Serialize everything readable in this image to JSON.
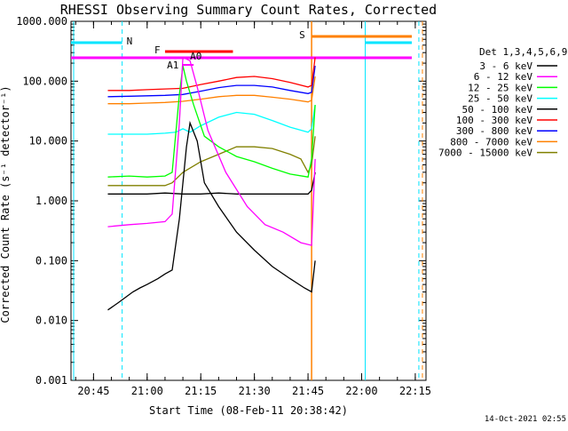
{
  "chart_data": {
    "type": "line",
    "title": "RHESSI Observing Summary Count Rates, Corrected",
    "xlabel": "Start Time (08-Feb-11 20:38:42)",
    "ylabel": "Corrected Count Rate (s⁻¹ detector⁻¹)",
    "x_start": "20:38:42",
    "x_range": [
      "20:38:42",
      "22:18:00"
    ],
    "x_ticks": [
      "20:45",
      "21:00",
      "21:15",
      "21:30",
      "21:45",
      "22:00",
      "22:15"
    ],
    "y_scale": "log",
    "ylim": [
      0.001,
      1000
    ],
    "y_ticks": [
      "0.001",
      "0.010",
      "0.100",
      "1.000",
      "10.000",
      "100.000",
      "1000.000"
    ],
    "legend_title": "Det 1,3,4,5,6,9",
    "legend_position": "right",
    "timestamp": "14-Oct-2021 02:55",
    "series": [
      {
        "name": "3 - 6 keV",
        "color": "#000000",
        "x": [
          "20:49",
          "20:52",
          "20:56",
          "20:58",
          "21:00",
          "21:03",
          "21:05",
          "21:07",
          "21:09",
          "21:11",
          "21:12",
          "21:14",
          "21:16",
          "21:20",
          "21:25",
          "21:30",
          "21:35",
          "21:40",
          "21:44",
          "21:46",
          "21:47"
        ],
        "y": [
          0.015,
          0.02,
          0.03,
          0.035,
          0.04,
          0.05,
          0.06,
          0.07,
          0.5,
          8,
          20,
          10,
          2,
          0.8,
          0.3,
          0.15,
          0.08,
          0.05,
          0.035,
          0.03,
          0.1
        ]
      },
      {
        "name": "6 - 12 keV",
        "color": "#ff00ff",
        "x": [
          "20:49",
          "20:55",
          "21:00",
          "21:05",
          "21:07",
          "21:09",
          "21:10",
          "21:12",
          "21:14",
          "21:17",
          "21:22",
          "21:28",
          "21:33",
          "21:38",
          "21:43",
          "21:46",
          "21:47"
        ],
        "y": [
          0.37,
          0.4,
          0.42,
          0.45,
          0.6,
          20,
          250,
          220,
          80,
          15,
          3,
          0.8,
          0.4,
          0.3,
          0.2,
          0.18,
          5
        ]
      },
      {
        "name": "12 - 25 keV",
        "color": "#00ff00",
        "x": [
          "20:49",
          "20:55",
          "21:00",
          "21:05",
          "21:07",
          "21:09",
          "21:10",
          "21:11",
          "21:13",
          "21:16",
          "21:20",
          "21:25",
          "21:30",
          "21:35",
          "21:40",
          "21:45",
          "21:46",
          "21:47"
        ],
        "y": [
          2.5,
          2.6,
          2.5,
          2.6,
          3,
          60,
          180,
          100,
          40,
          12,
          8,
          5.5,
          4.5,
          3.5,
          2.8,
          2.5,
          5,
          40
        ]
      },
      {
        "name": "25 - 50 keV",
        "color": "#00ffff",
        "x": [
          "20:49",
          "20:55",
          "21:00",
          "21:05",
          "21:08",
          "21:10",
          "21:12",
          "21:15",
          "21:20",
          "21:25",
          "21:30",
          "21:35",
          "21:40",
          "21:45",
          "21:46",
          "21:47"
        ],
        "y": [
          13,
          13,
          13,
          13.5,
          14,
          16,
          14,
          18,
          25,
          30,
          28,
          22,
          17,
          14,
          16,
          40
        ]
      },
      {
        "name": "50 - 100 keV",
        "color": "#000000",
        "x": [
          "20:49",
          "20:55",
          "21:00",
          "21:05",
          "21:10",
          "21:15",
          "21:20",
          "21:25",
          "21:30",
          "21:35",
          "21:40",
          "21:45",
          "21:46",
          "21:47"
        ],
        "y": [
          1.3,
          1.3,
          1.3,
          1.35,
          1.3,
          1.3,
          1.35,
          1.3,
          1.3,
          1.3,
          1.3,
          1.3,
          1.5,
          3
        ]
      },
      {
        "name": "100 - 300 keV",
        "color": "#ff0000",
        "x": [
          "20:49",
          "20:55",
          "21:00",
          "21:05",
          "21:10",
          "21:15",
          "21:20",
          "21:25",
          "21:30",
          "21:35",
          "21:40",
          "21:45",
          "21:46",
          "21:47"
        ],
        "y": [
          70,
          70,
          72,
          74,
          76,
          88,
          100,
          115,
          120,
          110,
          95,
          80,
          85,
          250
        ]
      },
      {
        "name": "300 - 800 keV",
        "color": "#0000ff",
        "x": [
          "20:49",
          "20:55",
          "21:00",
          "21:05",
          "21:10",
          "21:15",
          "21:20",
          "21:25",
          "21:30",
          "21:35",
          "21:40",
          "21:45",
          "21:46",
          "21:47"
        ],
        "y": [
          55,
          56,
          57,
          58,
          60,
          68,
          78,
          85,
          85,
          80,
          70,
          62,
          65,
          180
        ]
      },
      {
        "name": "800 - 7000 keV",
        "color": "#ff8000",
        "x": [
          "20:49",
          "20:55",
          "21:00",
          "21:05",
          "21:10",
          "21:15",
          "21:20",
          "21:25",
          "21:30",
          "21:35",
          "21:40",
          "21:45",
          "21:46",
          "21:47"
        ],
        "y": [
          42,
          42,
          43,
          44,
          46,
          50,
          55,
          58,
          58,
          54,
          50,
          45,
          48,
          120
        ]
      },
      {
        "name": "7000 - 15000 keV",
        "color": "#808000",
        "x": [
          "20:49",
          "20:55",
          "21:00",
          "21:05",
          "21:07",
          "21:10",
          "21:15",
          "21:20",
          "21:25",
          "21:30",
          "21:35",
          "21:40",
          "21:43",
          "21:45",
          "21:46",
          "21:47"
        ],
        "y": [
          1.8,
          1.8,
          1.8,
          1.8,
          2,
          3,
          4.5,
          6,
          8,
          8,
          7.5,
          6,
          5,
          3,
          4,
          12
        ]
      }
    ],
    "annotations": {
      "N": "N",
      "S": "S",
      "F": "F",
      "A1": "A1",
      "A0": "A0"
    }
  }
}
